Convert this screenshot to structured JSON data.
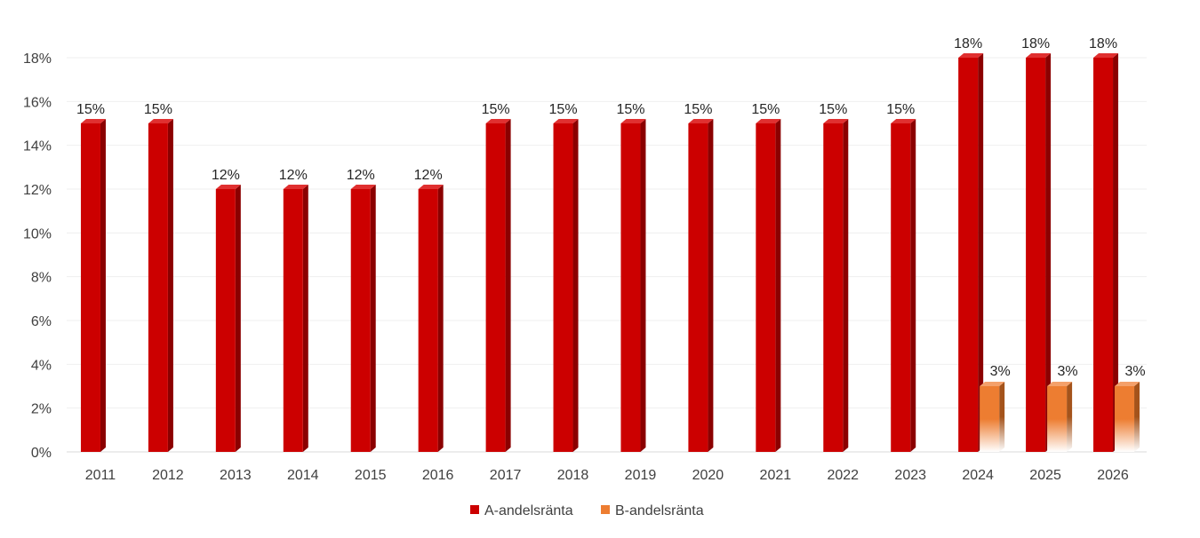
{
  "chart_data": {
    "type": "bar",
    "categories": [
      "2011",
      "2012",
      "2013",
      "2014",
      "2015",
      "2016",
      "2017",
      "2018",
      "2019",
      "2020",
      "2021",
      "2022",
      "2023",
      "2024",
      "2025",
      "2026"
    ],
    "series": [
      {
        "name": "A-andelsränta",
        "values": [
          15,
          15,
          12,
          12,
          12,
          12,
          15,
          15,
          15,
          15,
          15,
          15,
          15,
          18,
          18,
          18
        ],
        "color": "#cc0000"
      },
      {
        "name": "B-andelsränta",
        "values": [
          null,
          null,
          null,
          null,
          null,
          null,
          null,
          null,
          null,
          null,
          null,
          null,
          null,
          3,
          3,
          3
        ],
        "color": "#ed7d31"
      }
    ],
    "data_labels_a": [
      "15%",
      "15%",
      "12%",
      "12%",
      "12%",
      "12%",
      "15%",
      "15%",
      "15%",
      "15%",
      "15%",
      "15%",
      "15%",
      "18%",
      "18%",
      "18%"
    ],
    "data_labels_b": [
      "3%",
      "3%",
      "3%"
    ],
    "yticks": [
      "0%",
      "2%",
      "4%",
      "6%",
      "8%",
      "10%",
      "12%",
      "14%",
      "16%",
      "18%"
    ],
    "ylim": [
      0,
      18
    ],
    "grid": true,
    "legend": "bottom"
  }
}
